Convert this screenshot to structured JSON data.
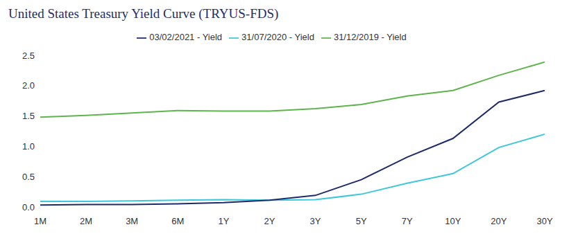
{
  "chart_data": {
    "type": "line",
    "title": "United States Treasury Yield Curve (TRYUS-FDS)",
    "categories": [
      "1M",
      "2M",
      "3M",
      "6M",
      "1Y",
      "2Y",
      "3Y",
      "5Y",
      "7Y",
      "10Y",
      "20Y",
      "30Y"
    ],
    "series": [
      {
        "name": "31/12/2019 - Yield",
        "color": "#5cb54a",
        "values": [
          1.48,
          1.51,
          1.55,
          1.59,
          1.58,
          1.58,
          1.62,
          1.69,
          1.83,
          1.92,
          2.17,
          2.39
        ]
      },
      {
        "name": "31/07/2020 - Yield",
        "color": "#3cc8d8",
        "values": [
          0.09,
          0.09,
          0.1,
          0.11,
          0.12,
          0.11,
          0.12,
          0.21,
          0.39,
          0.55,
          0.98,
          1.2
        ]
      },
      {
        "name": "03/02/2021 - Yield",
        "color": "#1c2a68",
        "values": [
          0.03,
          0.04,
          0.04,
          0.05,
          0.07,
          0.11,
          0.19,
          0.45,
          0.82,
          1.13,
          1.73,
          1.92
        ]
      }
    ],
    "ylim": [
      0,
      2.5
    ],
    "yticks": [
      {
        "value": 0,
        "label": "0.0"
      },
      0.5,
      {
        "value": 1,
        "label": "1.0"
      },
      1.5,
      {
        "value": 2,
        "label": "2.0"
      },
      2.5
    ],
    "grid": false,
    "legend": "top"
  }
}
